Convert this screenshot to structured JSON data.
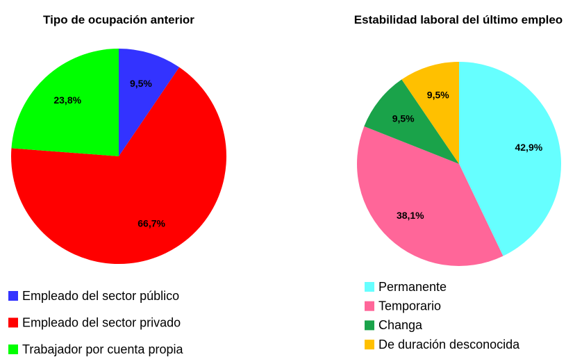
{
  "chart_data": [
    {
      "type": "pie",
      "title": "Tipo de ocupación anterior",
      "categories": [
        "Empleado del sector público",
        "Empleado del sector privado",
        "Trabajador por cuenta propia"
      ],
      "values": [
        9.5,
        66.7,
        23.8
      ],
      "value_labels": [
        "9,5%",
        "66,7%",
        "23,8%"
      ],
      "colors": [
        "#3333ff",
        "#ff0000",
        "#00ff00"
      ]
    },
    {
      "type": "pie",
      "title": "Estabilidad laboral del último empleo",
      "categories": [
        "Permanente",
        "Temporario",
        "Changa",
        "De duración desconocida"
      ],
      "values": [
        42.9,
        38.1,
        9.5,
        9.5
      ],
      "value_labels": [
        "42,9%",
        "38,1%",
        "9,5%",
        "9,5%"
      ],
      "colors": [
        "#66ffff",
        "#ff6699",
        "#1aa34a",
        "#ffc000"
      ]
    }
  ]
}
